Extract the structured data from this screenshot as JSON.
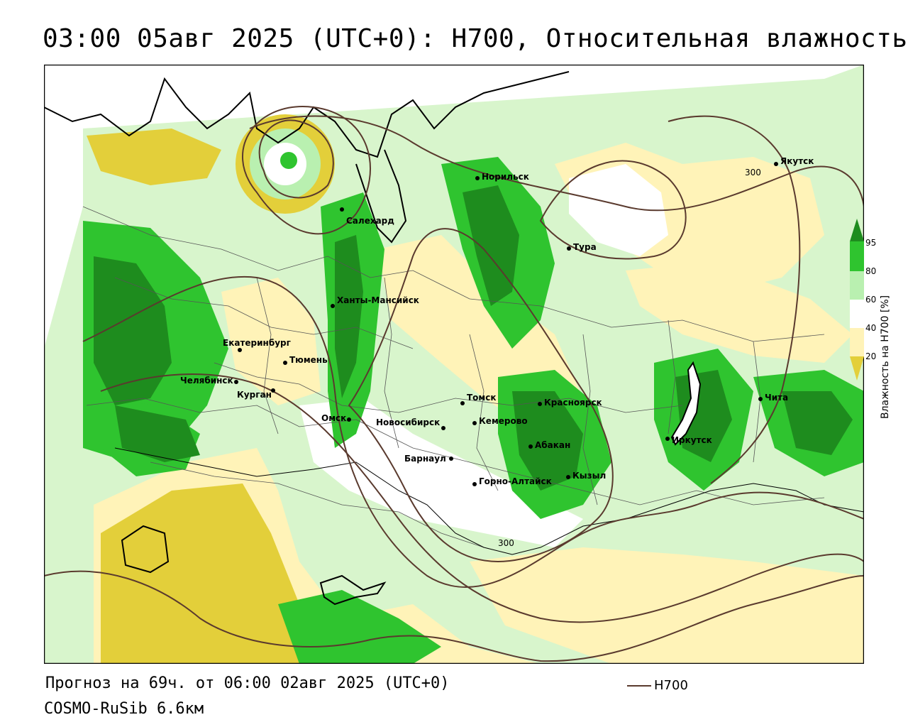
{
  "header": {
    "title": "03:00 05авг 2025 (UTC+0): H700, Относительная влажность"
  },
  "footer": {
    "forecast": "Прогноз на 69ч. от 06:00 02авг 2025 (UTC+0)",
    "model": "COSMO-RuSib 6.6км"
  },
  "legend": {
    "line_label": "H700",
    "line_color": "#5a3a2e"
  },
  "colorbar": {
    "title": "Влажность на H700 [%]",
    "ticks": [
      "95",
      "80",
      "60",
      "40",
      "20"
    ],
    "colors": {
      "c95": "#1e8c1e",
      "c80": "#2fc42f",
      "c60": "#b9f0b0",
      "c50": "#ffffff",
      "c40": "#fff3b8",
      "c20": "#e3cf3a"
    }
  },
  "contours": {
    "labels": [
      "300",
      "300"
    ]
  },
  "cities": [
    {
      "name": "Якутск"
    },
    {
      "name": "Норильск"
    },
    {
      "name": "Салехард"
    },
    {
      "name": "Тура"
    },
    {
      "name": "Ханты-Мансийск"
    },
    {
      "name": "Екатеринбург"
    },
    {
      "name": "Тюмень"
    },
    {
      "name": "Челябинск"
    },
    {
      "name": "Курган"
    },
    {
      "name": "Омск"
    },
    {
      "name": "Новосибирск"
    },
    {
      "name": "Томск"
    },
    {
      "name": "Кемерово"
    },
    {
      "name": "Красноярск"
    },
    {
      "name": "Абакан"
    },
    {
      "name": "Барнаул"
    },
    {
      "name": "Горно-Алтайск"
    },
    {
      "name": "Кызыл"
    },
    {
      "name": "Иркутск"
    },
    {
      "name": "Чита"
    }
  ]
}
